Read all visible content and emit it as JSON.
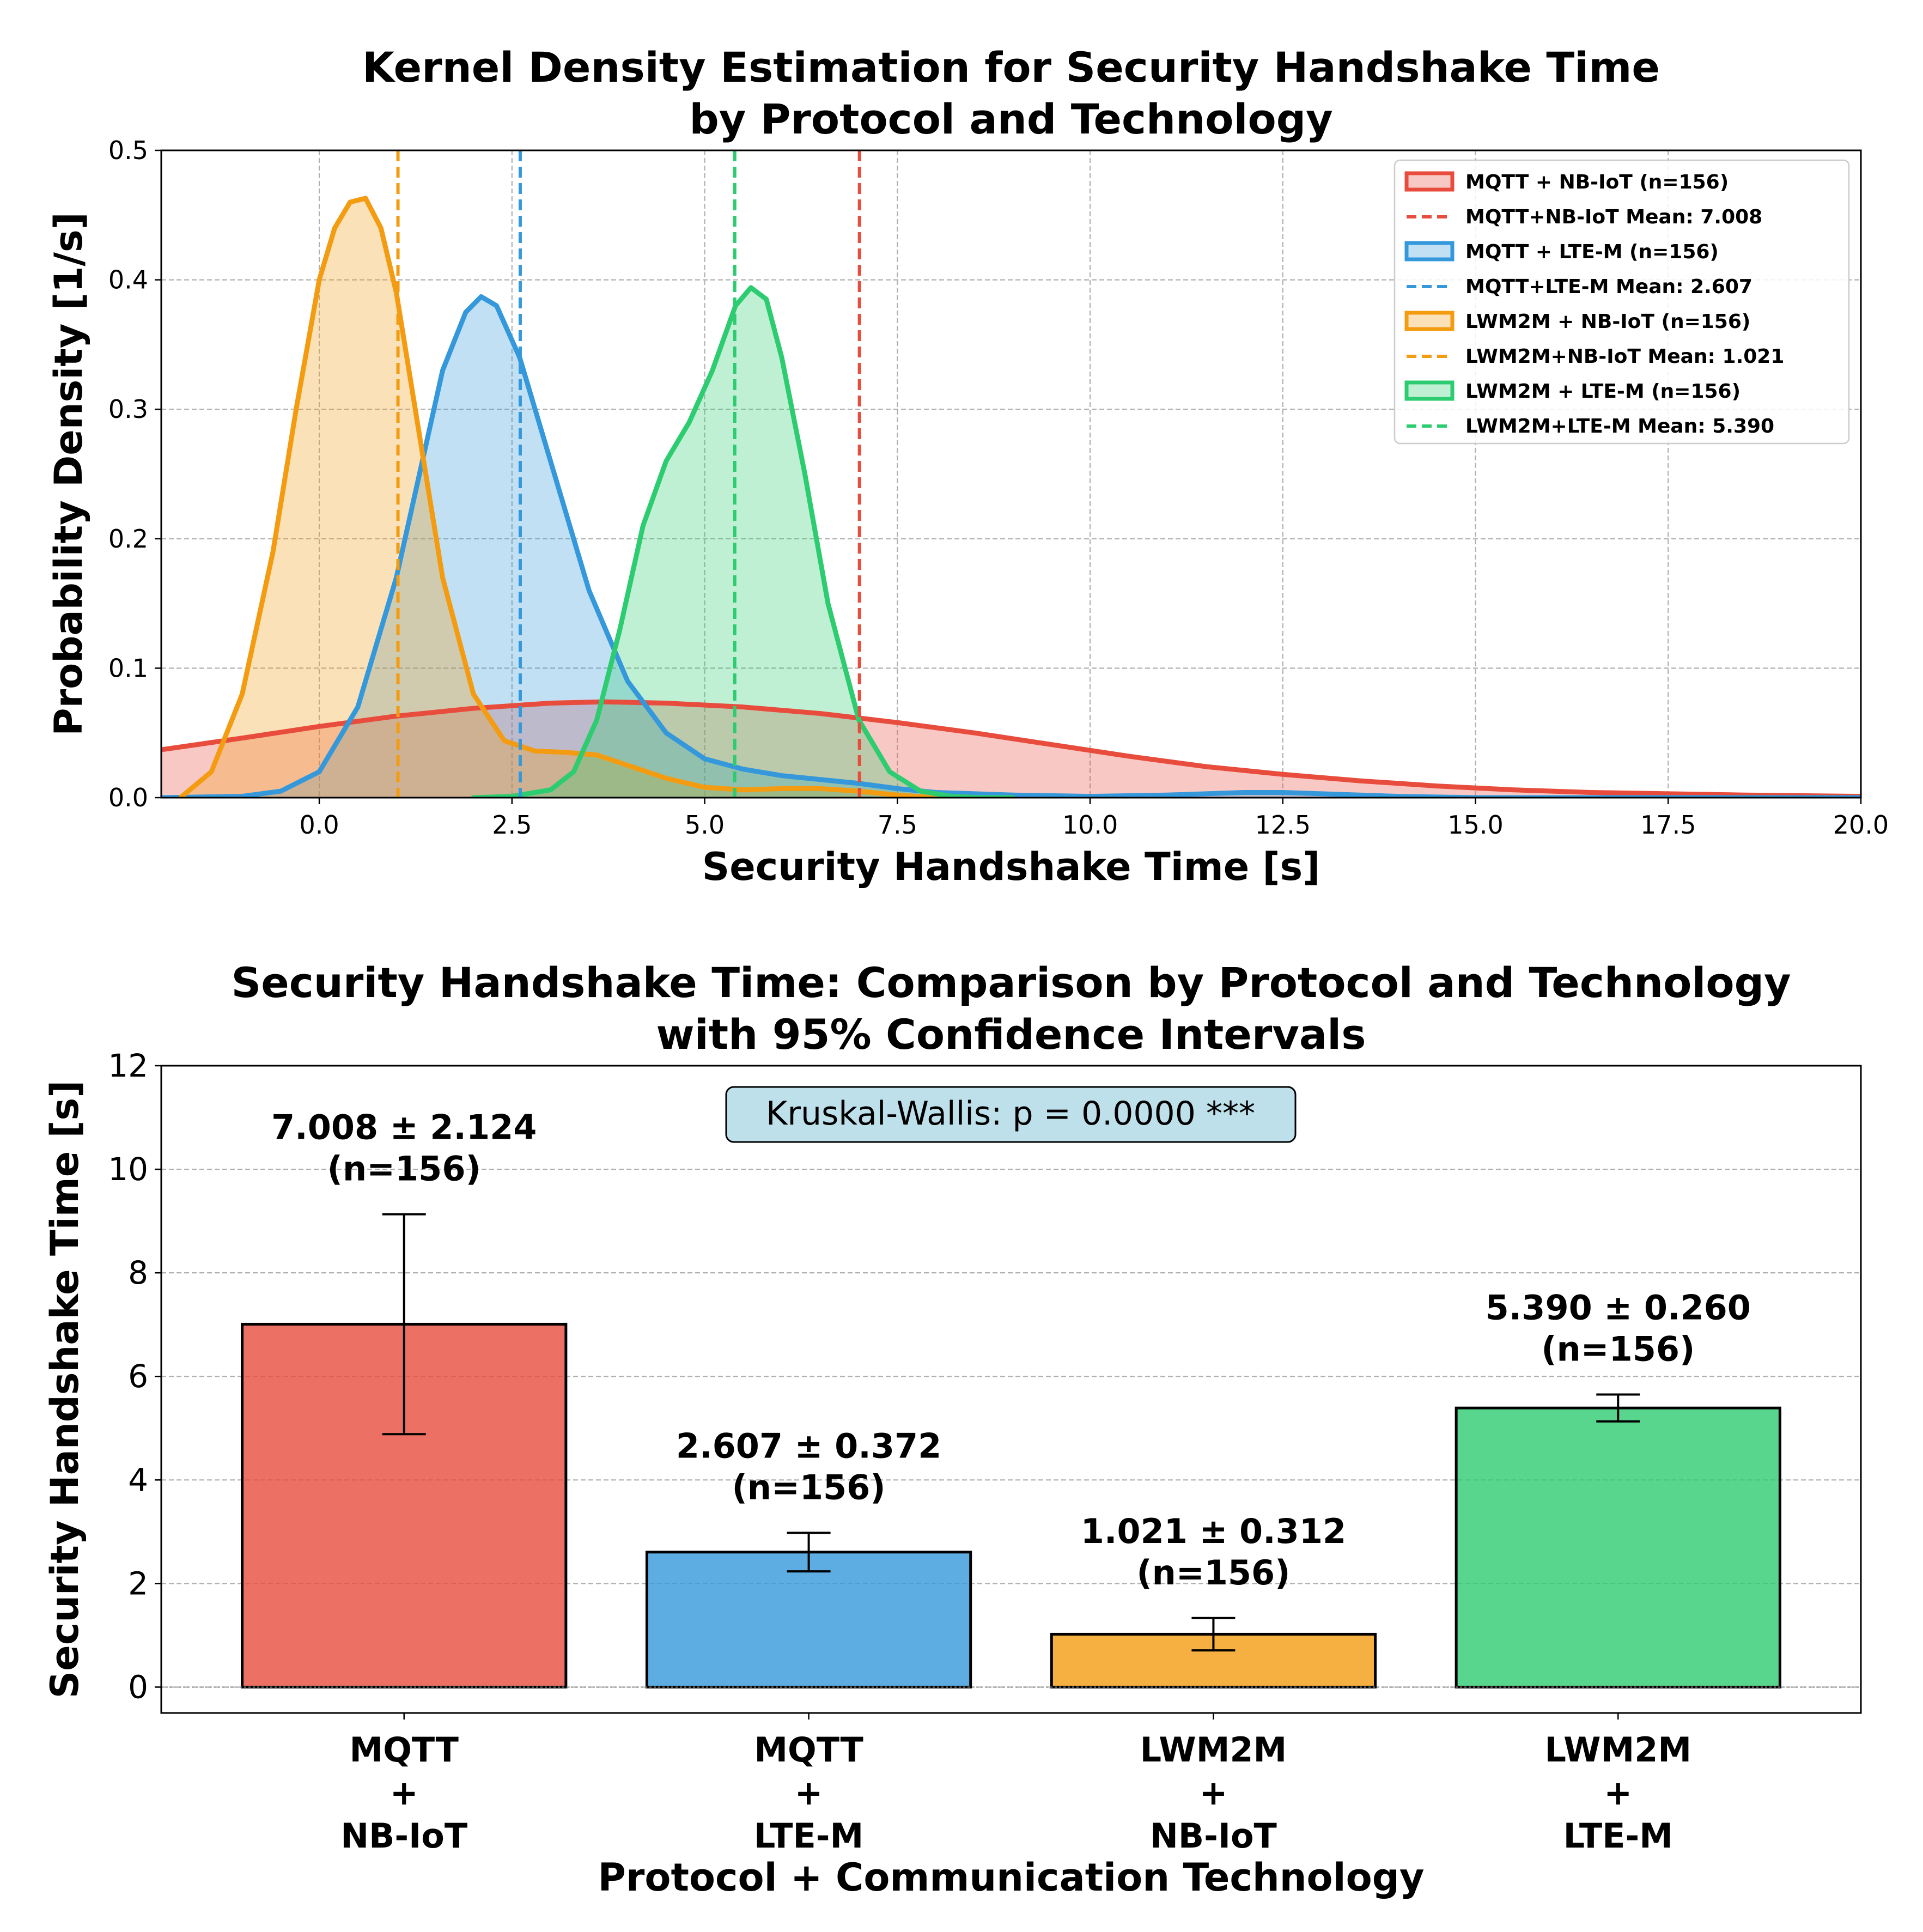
{
  "chart_data": [
    {
      "type": "area",
      "title": "Kernel Density Estimation for Security Handshake Time\nby Protocol and Technology",
      "xlabel": "Security Handshake Time [s]",
      "ylabel": "Probability Density [1/s]",
      "xlim": [
        -2.05,
        20.0
      ],
      "ylim": [
        0,
        0.5
      ],
      "xticks": [
        0.0,
        2.5,
        5.0,
        7.5,
        10.0,
        12.5,
        15.0,
        17.5,
        20.0
      ],
      "xtick_labels": [
        "0.0",
        "2.5",
        "5.0",
        "7.5",
        "10.0",
        "12.5",
        "15.0",
        "17.5",
        "20.0"
      ],
      "yticks": [
        0.0,
        0.1,
        0.2,
        0.3,
        0.4,
        0.5
      ],
      "ytick_labels": [
        "0.0",
        "0.1",
        "0.2",
        "0.3",
        "0.4",
        "0.5"
      ],
      "grid": true,
      "legend_position": "top-right",
      "series": [
        {
          "name": "MQTT + NB-IoT (n=156)",
          "mean_label": "MQTT+NB-IoT Mean: 7.008",
          "mean": 7.008,
          "color": "#e74c3c",
          "x": [
            -2.05,
            -1,
            0,
            1,
            2,
            3,
            3.7,
            4.5,
            5.5,
            6.5,
            7.5,
            8.5,
            9.5,
            10.5,
            11.5,
            12.5,
            13.5,
            14.5,
            15.5,
            16.5,
            17.5,
            18.5,
            20.0
          ],
          "y": [
            0.037,
            0.046,
            0.055,
            0.063,
            0.069,
            0.073,
            0.074,
            0.073,
            0.07,
            0.065,
            0.058,
            0.05,
            0.041,
            0.032,
            0.024,
            0.018,
            0.013,
            0.009,
            0.006,
            0.004,
            0.003,
            0.002,
            0.001
          ]
        },
        {
          "name": "MQTT + LTE-M (n=156)",
          "mean_label": "MQTT+LTE-M Mean: 2.607",
          "mean": 2.607,
          "color": "#3498db",
          "x": [
            -2.05,
            -1,
            -0.5,
            0,
            0.5,
            1.0,
            1.3,
            1.6,
            1.9,
            2.1,
            2.3,
            2.6,
            3.0,
            3.5,
            4.0,
            4.5,
            5.0,
            5.5,
            6.0,
            6.5,
            7.0,
            7.5,
            8.0,
            9.0,
            10.0,
            11.0,
            12.0,
            12.5,
            13.0,
            14.0,
            15.0,
            20.0
          ],
          "y": [
            0.0,
            0.001,
            0.005,
            0.02,
            0.07,
            0.17,
            0.25,
            0.33,
            0.375,
            0.387,
            0.38,
            0.34,
            0.26,
            0.16,
            0.09,
            0.05,
            0.03,
            0.022,
            0.017,
            0.014,
            0.011,
            0.007,
            0.004,
            0.002,
            0.001,
            0.002,
            0.004,
            0.004,
            0.003,
            0.001,
            0.0,
            0.0
          ]
        },
        {
          "name": "LWM2M + NB-IoT (n=156)",
          "mean_label": "LWM2M+NB-IoT Mean: 1.021",
          "mean": 1.021,
          "color": "#f39c12",
          "x": [
            -1.8,
            -1.4,
            -1.0,
            -0.6,
            -0.3,
            0.0,
            0.2,
            0.4,
            0.6,
            0.8,
            1.0,
            1.3,
            1.6,
            2.0,
            2.4,
            2.8,
            3.2,
            3.6,
            4.0,
            4.5,
            5.0,
            5.5,
            6.0,
            6.5,
            7.0,
            7.5,
            8.0
          ],
          "y": [
            0.0,
            0.02,
            0.08,
            0.19,
            0.3,
            0.4,
            0.44,
            0.46,
            0.463,
            0.44,
            0.39,
            0.28,
            0.17,
            0.08,
            0.044,
            0.036,
            0.035,
            0.033,
            0.025,
            0.015,
            0.008,
            0.006,
            0.007,
            0.007,
            0.005,
            0.002,
            0.0
          ]
        },
        {
          "name": "LWM2M + LTE-M (n=156)",
          "mean_label": "LWM2M+LTE-M Mean: 5.390",
          "mean": 5.39,
          "color": "#2ecc71",
          "x": [
            2.0,
            2.5,
            3.0,
            3.3,
            3.6,
            3.9,
            4.2,
            4.5,
            4.8,
            5.1,
            5.4,
            5.6,
            5.8,
            6.0,
            6.3,
            6.6,
            7.0,
            7.4,
            7.8,
            8.2,
            8.6,
            9.0
          ],
          "y": [
            0.0,
            0.001,
            0.006,
            0.02,
            0.06,
            0.13,
            0.21,
            0.26,
            0.29,
            0.33,
            0.38,
            0.394,
            0.385,
            0.34,
            0.25,
            0.15,
            0.06,
            0.02,
            0.005,
            0.001,
            0.0,
            0.0
          ]
        }
      ]
    },
    {
      "type": "bar",
      "title": "Security Handshake Time: Comparison by Protocol and Technology\nwith 95% Confidence Intervals",
      "xlabel": "Protocol + Communication Technology",
      "ylabel": "Security Handshake Time [s]",
      "ylim": [
        -0.5,
        12
      ],
      "yticks": [
        0,
        2,
        4,
        6,
        8,
        10,
        12
      ],
      "ytick_labels": [
        "0",
        "2",
        "4",
        "6",
        "8",
        "10",
        "12"
      ],
      "grid": true,
      "annotation": "Kruskal-Wallis: p = 0.0000 ***",
      "categories": [
        "MQTT\n+\nNB-IoT",
        "MQTT\n+\nLTE-M",
        "LWM2M\n+\nNB-IoT",
        "LWM2M\n+\nLTE-M"
      ],
      "values": [
        7.008,
        2.607,
        1.021,
        5.39
      ],
      "errors": [
        2.124,
        0.372,
        0.312,
        0.26
      ],
      "colors": [
        "#e74c3c",
        "#3498db",
        "#f39c12",
        "#2ecc71"
      ],
      "value_labels": [
        "7.008 ± 2.124\n(n=156)",
        "2.607 ± 0.372\n(n=156)",
        "1.021 ± 0.312\n(n=156)",
        "5.390 ± 0.260\n(n=156)"
      ]
    }
  ]
}
